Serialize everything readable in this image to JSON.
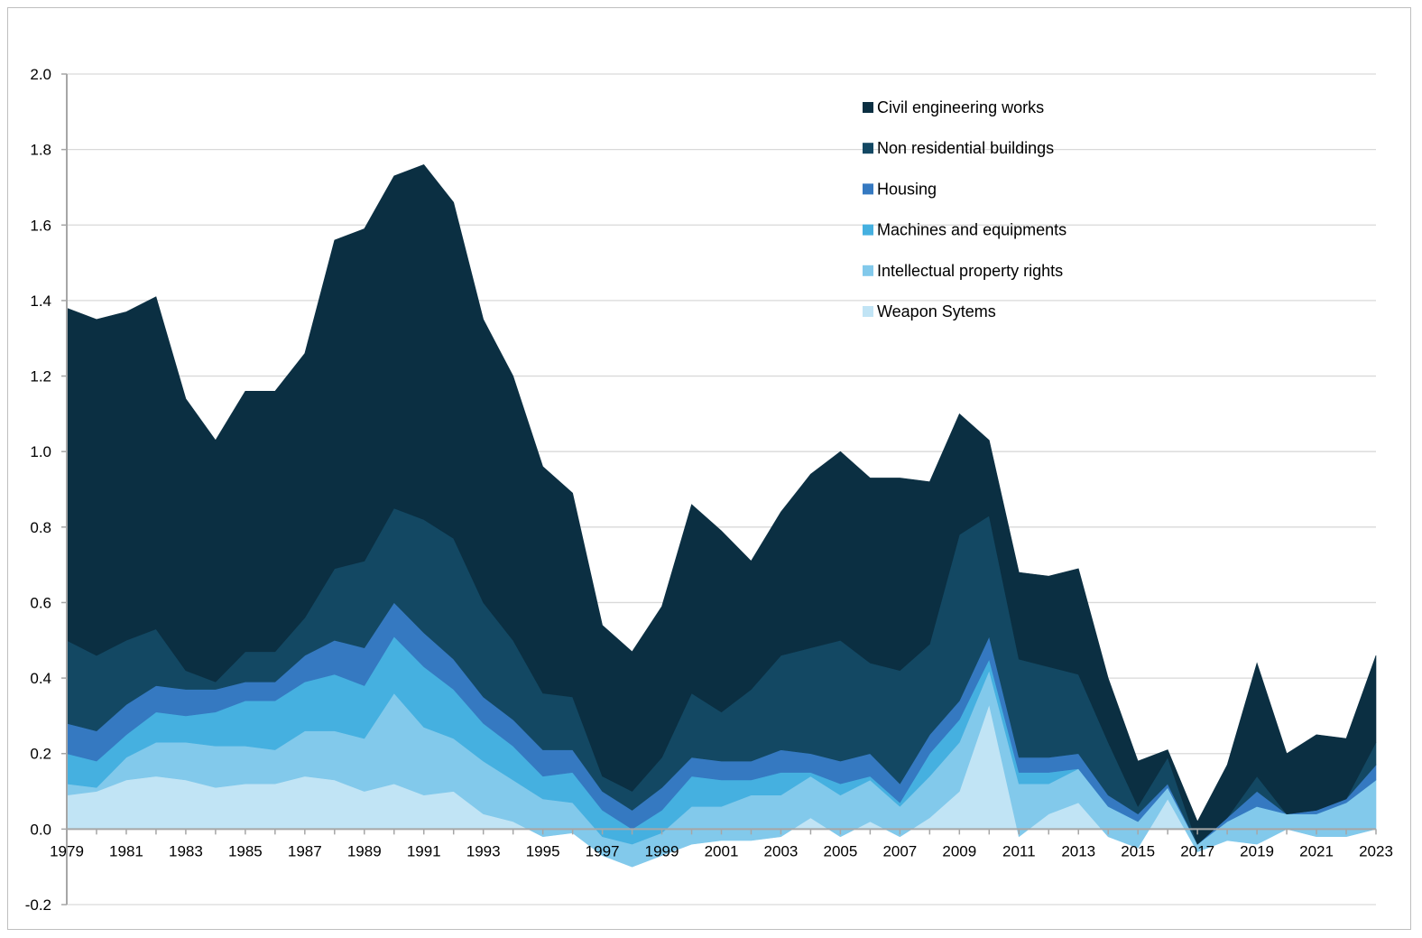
{
  "chart_data": {
    "type": "area",
    "subtype": "stacked",
    "title": "",
    "xlabel": "",
    "ylabel": "",
    "ylim": [
      -0.2,
      2.0
    ],
    "ytick_step": 0.2,
    "grid": true,
    "legend_position": "top-right",
    "x": [
      1979,
      1980,
      1981,
      1982,
      1983,
      1984,
      1985,
      1986,
      1987,
      1988,
      1989,
      1990,
      1991,
      1992,
      1993,
      1994,
      1995,
      1996,
      1997,
      1998,
      1999,
      2000,
      2001,
      2002,
      2003,
      2004,
      2005,
      2006,
      2007,
      2008,
      2009,
      2010,
      2011,
      2012,
      2013,
      2014,
      2015,
      2016,
      2017,
      2018,
      2019,
      2020,
      2021,
      2022,
      2023
    ],
    "x_tick_labels": [
      "1979",
      "1981",
      "1983",
      "1985",
      "1987",
      "1989",
      "1991",
      "1993",
      "1995",
      "1997",
      "1999",
      "2001",
      "2003",
      "2005",
      "2007",
      "2009",
      "2011",
      "2013",
      "2015",
      "2017",
      "2019",
      "2021",
      "2023"
    ],
    "y_tick_labels": [
      "2.0",
      "1.8",
      "1.6",
      "1.4",
      "1.2",
      "1.0",
      "0.8",
      "0.6",
      "0.4",
      "0.2",
      "0.0",
      "-0.2"
    ],
    "series": [
      {
        "name": "Weapon Sytems",
        "color": "#c1e4f5",
        "values": [
          0.09,
          0.1,
          0.13,
          0.14,
          0.13,
          0.11,
          0.12,
          0.12,
          0.14,
          0.13,
          0.1,
          0.12,
          0.09,
          0.1,
          0.04,
          0.02,
          -0.02,
          -0.01,
          -0.07,
          -0.1,
          -0.07,
          -0.04,
          -0.03,
          -0.03,
          -0.02,
          0.03,
          -0.02,
          0.02,
          -0.02,
          0.03,
          0.1,
          0.33,
          -0.02,
          0.04,
          0.07,
          -0.02,
          -0.05,
          0.08,
          -0.06,
          -0.03,
          -0.04,
          0.0,
          -0.02,
          -0.02,
          0.0
        ]
      },
      {
        "name": "Intellectual property rights",
        "color": "#82c9eb",
        "values": [
          0.03,
          0.01,
          0.06,
          0.09,
          0.1,
          0.11,
          0.1,
          0.09,
          0.12,
          0.13,
          0.14,
          0.24,
          0.18,
          0.14,
          0.14,
          0.11,
          0.1,
          0.08,
          0.05,
          0.06,
          0.06,
          0.1,
          0.09,
          0.12,
          0.11,
          0.11,
          0.11,
          0.11,
          0.08,
          0.11,
          0.13,
          0.09,
          0.14,
          0.08,
          0.09,
          0.08,
          0.07,
          0.03,
          0.02,
          0.05,
          0.1,
          0.04,
          0.06,
          0.09,
          0.13
        ]
      },
      {
        "name": "Machines and equipments",
        "color": "#45b0e0",
        "values": [
          0.08,
          0.07,
          0.06,
          0.08,
          0.07,
          0.09,
          0.12,
          0.13,
          0.13,
          0.15,
          0.14,
          0.15,
          0.16,
          0.13,
          0.1,
          0.09,
          0.06,
          0.08,
          0.07,
          0.04,
          0.06,
          0.08,
          0.07,
          0.04,
          0.06,
          0.01,
          0.03,
          0.01,
          0.01,
          0.06,
          0.06,
          0.03,
          0.03,
          0.03,
          0.0,
          0.0,
          0.0,
          0.0,
          0.0,
          0.0,
          0.0,
          0.0,
          0.0,
          0.0,
          0.0
        ]
      },
      {
        "name": "Housing",
        "color": "#3579c1",
        "values": [
          0.08,
          0.08,
          0.08,
          0.07,
          0.07,
          0.06,
          0.05,
          0.05,
          0.07,
          0.09,
          0.1,
          0.09,
          0.09,
          0.08,
          0.07,
          0.07,
          0.07,
          0.06,
          0.05,
          0.05,
          0.06,
          0.05,
          0.05,
          0.05,
          0.06,
          0.05,
          0.06,
          0.06,
          0.05,
          0.05,
          0.05,
          0.06,
          0.04,
          0.04,
          0.04,
          0.03,
          0.02,
          0.01,
          0.0,
          0.01,
          0.04,
          0.0,
          0.01,
          0.01,
          0.04
        ]
      },
      {
        "name": "Non residential buildings",
        "color": "#134863",
        "values": [
          0.22,
          0.2,
          0.17,
          0.15,
          0.05,
          0.02,
          0.08,
          0.08,
          0.1,
          0.19,
          0.23,
          0.25,
          0.3,
          0.32,
          0.25,
          0.21,
          0.15,
          0.14,
          0.04,
          0.05,
          0.08,
          0.17,
          0.13,
          0.19,
          0.25,
          0.28,
          0.32,
          0.24,
          0.3,
          0.24,
          0.44,
          0.32,
          0.26,
          0.24,
          0.21,
          0.14,
          0.02,
          0.07,
          0.0,
          0.0,
          0.04,
          0.0,
          0.0,
          0.0,
          0.06
        ]
      },
      {
        "name": "Civil engineering works",
        "color": "#0b2f42",
        "values": [
          0.88,
          0.89,
          0.87,
          0.88,
          0.72,
          0.64,
          0.69,
          0.69,
          0.7,
          0.87,
          0.88,
          0.88,
          0.94,
          0.89,
          0.75,
          0.7,
          0.6,
          0.54,
          0.4,
          0.37,
          0.4,
          0.5,
          0.48,
          0.34,
          0.38,
          0.46,
          0.5,
          0.49,
          0.51,
          0.43,
          0.32,
          0.2,
          0.23,
          0.24,
          0.28,
          0.17,
          0.12,
          0.02,
          0.06,
          0.14,
          0.3,
          0.16,
          0.2,
          0.16,
          0.23
        ]
      }
    ],
    "legend_order": [
      "Civil engineering works",
      "Non residential buildings",
      "Housing",
      "Machines and equipments",
      "Intellectual property rights",
      "Weapon Sytems"
    ]
  }
}
